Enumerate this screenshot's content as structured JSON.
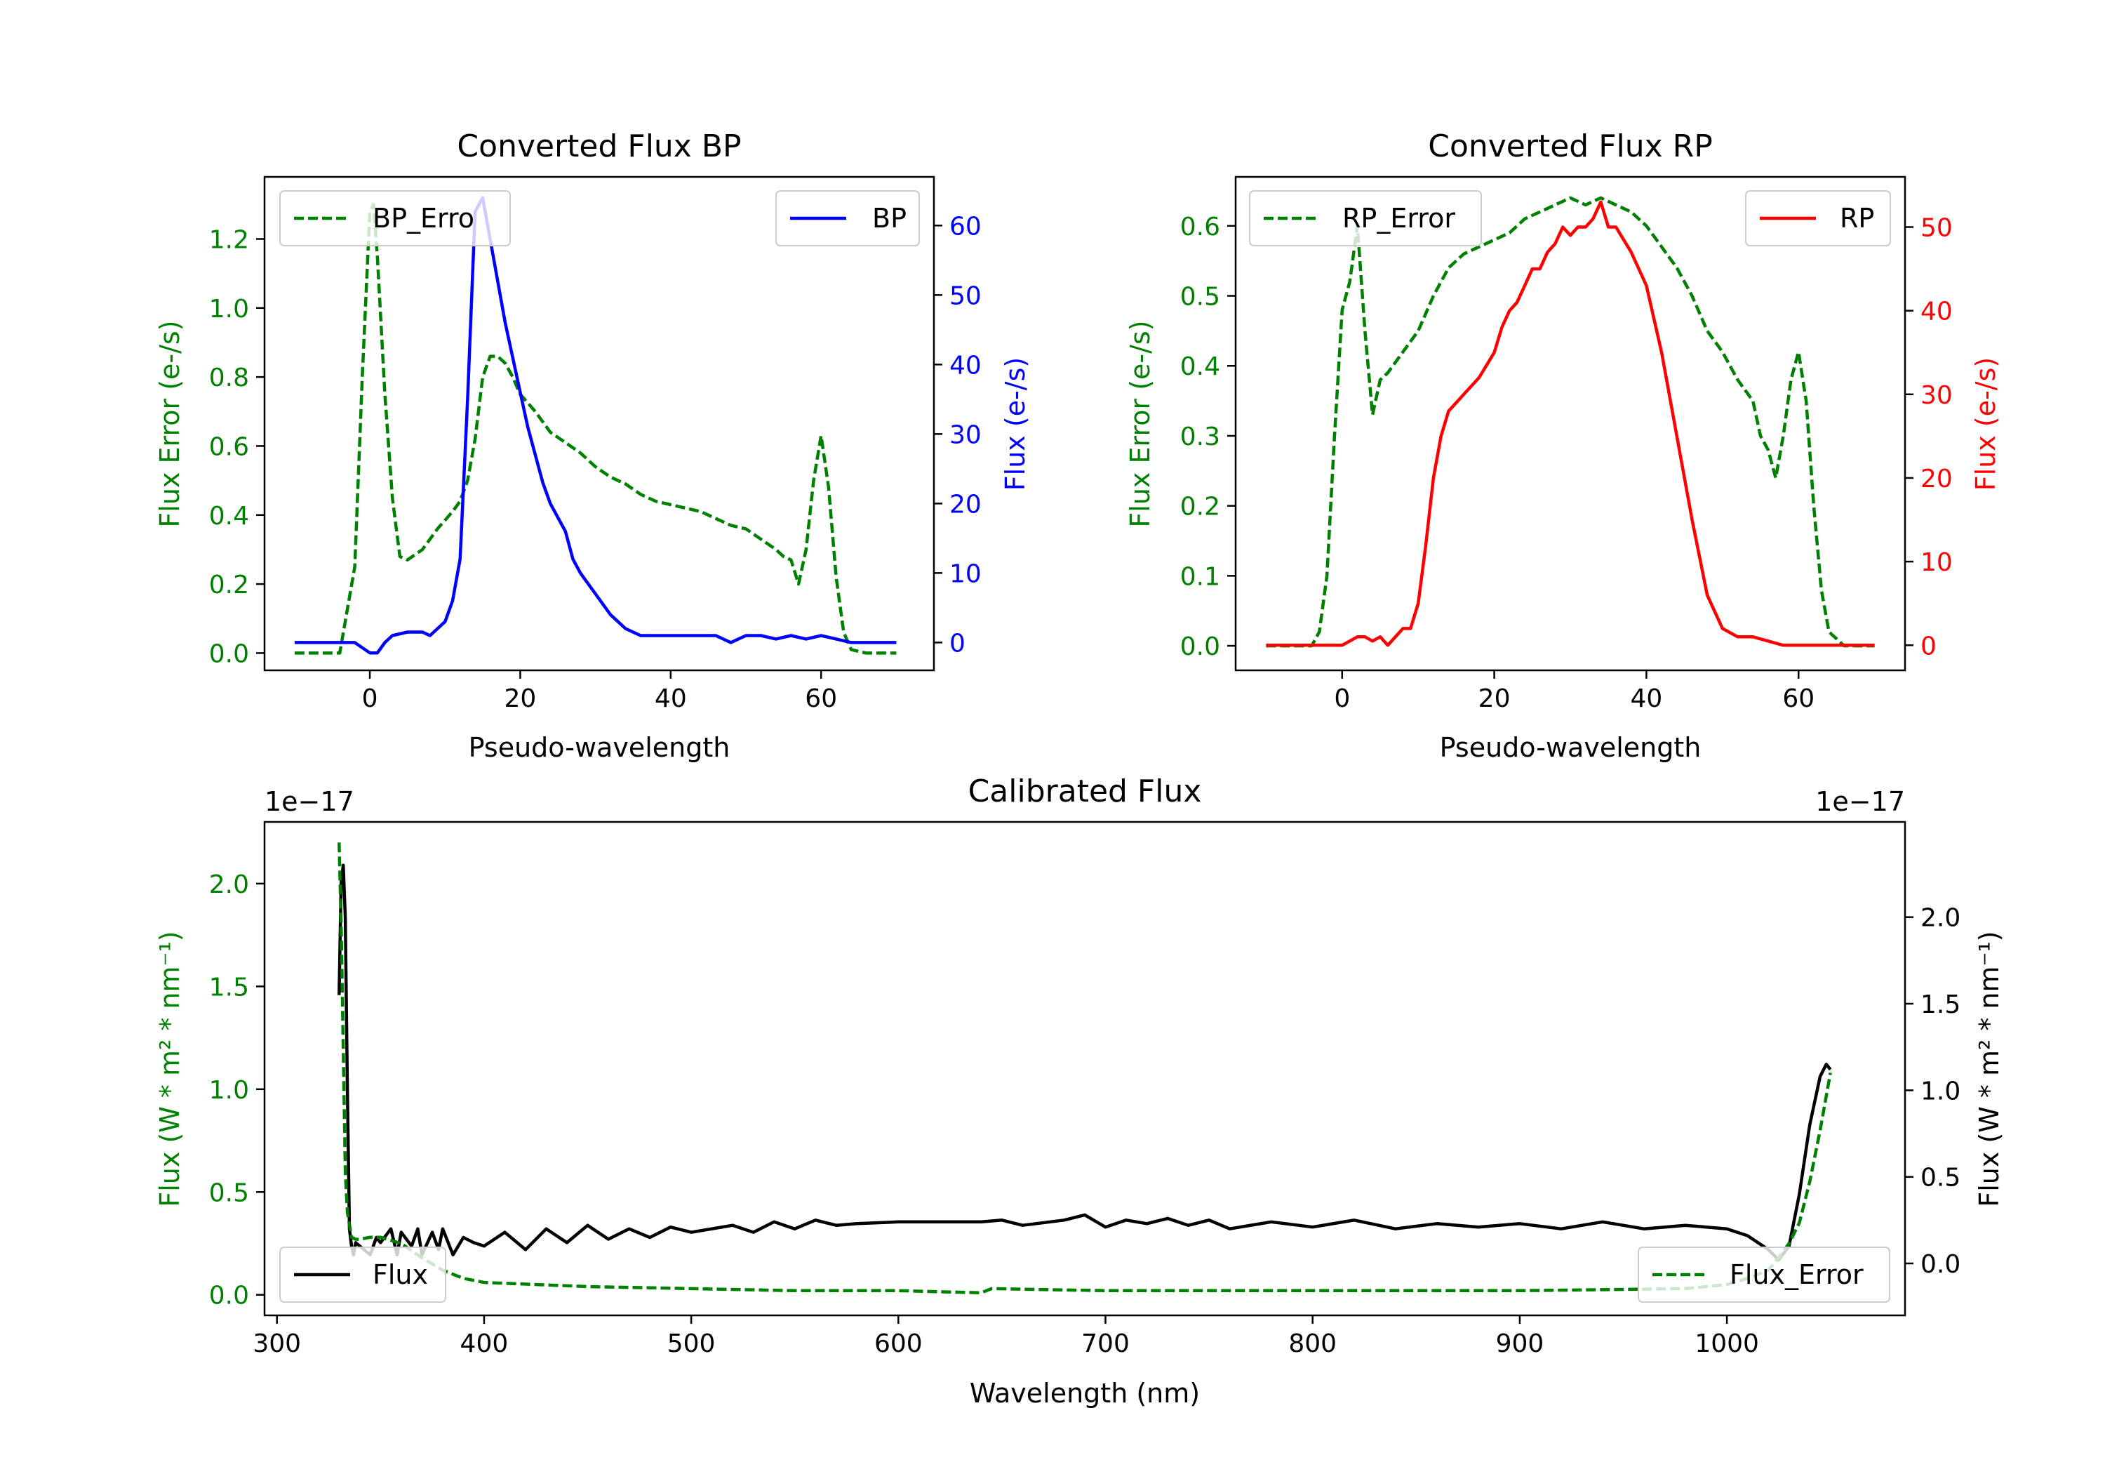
{
  "colors": {
    "bp": "#0000ff",
    "rp": "#ff0000",
    "error": "#008000",
    "flux": "#000000",
    "axis": "#000000",
    "background": "#ffffff"
  },
  "chart_data": [
    {
      "type": "line",
      "title": "Converted Flux BP",
      "xlabel": "Pseudo-wavelength",
      "ylabel_left": "Flux Error (e-/s)",
      "ylabel_right": "Flux (e-/s)",
      "xlim": [
        -14,
        75
      ],
      "xticks": [
        0,
        20,
        40,
        60
      ],
      "ylim_left": [
        -0.05,
        1.38
      ],
      "yticks_left": [
        0.0,
        0.2,
        0.4,
        0.6,
        0.8,
        1.0,
        1.2
      ],
      "ylim_right": [
        -4,
        67
      ],
      "yticks_right": [
        0,
        10,
        20,
        30,
        40,
        50,
        60
      ],
      "legend_left": {
        "label": "BP_Erro",
        "position": "upper-left"
      },
      "legend_right": {
        "label": "BP",
        "position": "upper-right"
      },
      "series": [
        {
          "name": "BP_Error",
          "axis": "left",
          "style": "dashed",
          "color": "#008000",
          "x": [
            -10,
            -4,
            -2,
            -1,
            0,
            0.5,
            1,
            2,
            3,
            4,
            5,
            7,
            9,
            11,
            12,
            13,
            14,
            15,
            16,
            17,
            18,
            19,
            20,
            22,
            24,
            26,
            28,
            30,
            32,
            34,
            36,
            38,
            40,
            42,
            44,
            46,
            48,
            50,
            52,
            54,
            55,
            56,
            57,
            58,
            59,
            60,
            61,
            62,
            63,
            64,
            66,
            70
          ],
          "y": [
            0.0,
            0.0,
            0.25,
            0.8,
            1.28,
            1.3,
            1.15,
            0.75,
            0.45,
            0.28,
            0.27,
            0.3,
            0.36,
            0.41,
            0.44,
            0.5,
            0.62,
            0.8,
            0.86,
            0.86,
            0.84,
            0.8,
            0.75,
            0.7,
            0.64,
            0.61,
            0.58,
            0.54,
            0.51,
            0.49,
            0.46,
            0.44,
            0.43,
            0.42,
            0.41,
            0.39,
            0.37,
            0.36,
            0.33,
            0.3,
            0.28,
            0.27,
            0.2,
            0.3,
            0.5,
            0.63,
            0.48,
            0.22,
            0.06,
            0.01,
            0.0,
            0.0
          ]
        },
        {
          "name": "BP",
          "axis": "right",
          "style": "solid",
          "color": "#0000ff",
          "x": [
            -10,
            -2,
            0,
            1,
            2,
            3,
            5,
            7,
            8,
            9,
            10,
            11,
            12,
            13,
            14,
            15,
            16,
            17,
            18,
            19,
            20,
            21,
            22,
            23,
            24,
            26,
            27,
            28,
            30,
            32,
            33,
            34,
            36,
            38,
            40,
            42,
            44,
            46,
            48,
            50,
            52,
            54,
            56,
            58,
            60,
            62,
            64,
            66,
            70
          ],
          "y": [
            0,
            0,
            -1.5,
            -1.5,
            0,
            1,
            1.5,
            1.5,
            1,
            2,
            3,
            6,
            12,
            35,
            62,
            64,
            58,
            52,
            46,
            41,
            36,
            31,
            27,
            23,
            20,
            16,
            12,
            10,
            7,
            4,
            3,
            2,
            1,
            1,
            1,
            1,
            1,
            1,
            0,
            1,
            1,
            0.5,
            1,
            0.5,
            1,
            0.5,
            0,
            0,
            0
          ]
        }
      ]
    },
    {
      "type": "line",
      "title": "Converted Flux RP",
      "xlabel": "Pseudo-wavelength",
      "ylabel_left": "Flux Error (e-/s)",
      "ylabel_right": "Flux (e-/s)",
      "xlim": [
        -14,
        74
      ],
      "xticks": [
        0,
        20,
        40,
        60
      ],
      "ylim_left": [
        -0.035,
        0.67
      ],
      "yticks_left": [
        0.0,
        0.1,
        0.2,
        0.3,
        0.4,
        0.5,
        0.6
      ],
      "ylim_right": [
        -3,
        56
      ],
      "yticks_right": [
        0,
        10,
        20,
        30,
        40,
        50
      ],
      "legend_left": {
        "label": "RP_Error",
        "position": "upper-left"
      },
      "legend_right": {
        "label": "RP",
        "position": "upper-right"
      },
      "series": [
        {
          "name": "RP_Error",
          "axis": "left",
          "style": "dashed",
          "color": "#008000",
          "x": [
            -10,
            -4,
            -3,
            -2,
            -1,
            0,
            1,
            2,
            3,
            4,
            5,
            6,
            8,
            10,
            12,
            14,
            16,
            18,
            20,
            22,
            24,
            26,
            28,
            30,
            32,
            34,
            36,
            38,
            40,
            42,
            44,
            46,
            48,
            50,
            52,
            54,
            55,
            56,
            57,
            58,
            59,
            60,
            61,
            62,
            63,
            64,
            66,
            70
          ],
          "y": [
            0.0,
            0.0,
            0.02,
            0.1,
            0.3,
            0.48,
            0.52,
            0.6,
            0.45,
            0.33,
            0.38,
            0.39,
            0.42,
            0.45,
            0.5,
            0.54,
            0.56,
            0.57,
            0.58,
            0.59,
            0.61,
            0.62,
            0.63,
            0.64,
            0.63,
            0.64,
            0.63,
            0.62,
            0.6,
            0.57,
            0.54,
            0.5,
            0.45,
            0.42,
            0.38,
            0.35,
            0.3,
            0.28,
            0.24,
            0.3,
            0.38,
            0.42,
            0.35,
            0.2,
            0.08,
            0.02,
            0.0,
            0.0
          ]
        },
        {
          "name": "RP",
          "axis": "right",
          "style": "solid",
          "color": "#ff0000",
          "x": [
            -10,
            -2,
            0,
            2,
            3,
            4,
            5,
            6,
            7,
            8,
            9,
            10,
            11,
            12,
            13,
            14,
            15,
            16,
            18,
            20,
            21,
            22,
            23,
            24,
            25,
            26,
            27,
            28,
            29,
            30,
            31,
            32,
            33,
            34,
            35,
            36,
            38,
            40,
            42,
            44,
            46,
            48,
            50,
            52,
            54,
            56,
            58,
            60,
            62,
            66,
            70
          ],
          "y": [
            0,
            0,
            0,
            1,
            1,
            0.5,
            1,
            0,
            1,
            2,
            2,
            5,
            12,
            20,
            25,
            28,
            29,
            30,
            32,
            35,
            38,
            40,
            41,
            43,
            45,
            45,
            47,
            48,
            50,
            49,
            50,
            50,
            51,
            53,
            50,
            50,
            47,
            43,
            35,
            25,
            15,
            6,
            2,
            1,
            1,
            0.5,
            0,
            0,
            0,
            0,
            0
          ]
        }
      ]
    },
    {
      "type": "line",
      "title": "Calibrated Flux",
      "xlabel": "Wavelength (nm)",
      "ylabel_left": "Flux (W * m² * nm⁻¹)",
      "ylabel_right": "Flux (W * m² * nm⁻¹)",
      "offset_left": "1e−17",
      "offset_right": "1e−17",
      "xlim": [
        294,
        1086
      ],
      "xticks": [
        300,
        400,
        500,
        600,
        700,
        800,
        900,
        1000
      ],
      "ylim_left": [
        -0.1,
        2.3
      ],
      "yticks_left": [
        0.0,
        0.5,
        1.0,
        1.5,
        2.0
      ],
      "ylim_right": [
        -0.3,
        2.55
      ],
      "yticks_right": [
        0.0,
        0.5,
        1.0,
        1.5,
        2.0
      ],
      "legend_left": {
        "label": "Flux",
        "position": "lower-left"
      },
      "legend_right": {
        "label": "Flux_Error",
        "position": "lower-right"
      },
      "series": [
        {
          "name": "Flux",
          "axis": "right",
          "style": "solid",
          "color": "#000000",
          "x": [
            330,
            331,
            332,
            333,
            334,
            335,
            336,
            337,
            338,
            340,
            345,
            348,
            350,
            355,
            358,
            360,
            365,
            368,
            370,
            375,
            378,
            380,
            385,
            390,
            395,
            400,
            410,
            420,
            430,
            440,
            450,
            460,
            470,
            480,
            490,
            500,
            510,
            520,
            530,
            540,
            550,
            560,
            570,
            580,
            600,
            620,
            640,
            650,
            660,
            680,
            690,
            700,
            710,
            720,
            730,
            740,
            750,
            760,
            780,
            800,
            820,
            840,
            860,
            880,
            900,
            920,
            940,
            960,
            980,
            1000,
            1010,
            1020,
            1025,
            1030,
            1035,
            1040,
            1045,
            1048,
            1050
          ],
          "y": [
            1.55,
            2.2,
            2.3,
            2.0,
            1.0,
            0.2,
            0.1,
            0.05,
            0.12,
            0.1,
            0.05,
            0.15,
            0.12,
            0.2,
            0.05,
            0.18,
            0.1,
            0.2,
            0.05,
            0.18,
            0.08,
            0.2,
            0.05,
            0.15,
            0.12,
            0.1,
            0.18,
            0.08,
            0.2,
            0.12,
            0.22,
            0.14,
            0.2,
            0.15,
            0.21,
            0.18,
            0.2,
            0.22,
            0.18,
            0.24,
            0.2,
            0.25,
            0.22,
            0.23,
            0.24,
            0.24,
            0.24,
            0.25,
            0.22,
            0.25,
            0.28,
            0.21,
            0.25,
            0.23,
            0.26,
            0.22,
            0.25,
            0.2,
            0.24,
            0.21,
            0.25,
            0.2,
            0.23,
            0.21,
            0.23,
            0.2,
            0.24,
            0.2,
            0.22,
            0.2,
            0.16,
            0.08,
            0.02,
            0.1,
            0.4,
            0.8,
            1.08,
            1.15,
            1.12
          ]
        },
        {
          "name": "Flux_Error",
          "axis": "left",
          "style": "dashed",
          "color": "#008000",
          "x": [
            330,
            331,
            332,
            333,
            334,
            336,
            338,
            340,
            345,
            350,
            360,
            370,
            380,
            390,
            400,
            450,
            500,
            550,
            600,
            640,
            645,
            700,
            800,
            900,
            980,
            1000,
            1010,
            1020,
            1025,
            1030,
            1035,
            1040,
            1045,
            1050
          ],
          "y": [
            2.2,
            1.8,
            1.2,
            0.6,
            0.4,
            0.28,
            0.27,
            0.27,
            0.28,
            0.28,
            0.25,
            0.18,
            0.12,
            0.08,
            0.06,
            0.04,
            0.03,
            0.02,
            0.02,
            0.01,
            0.03,
            0.02,
            0.02,
            0.02,
            0.03,
            0.05,
            0.08,
            0.12,
            0.18,
            0.25,
            0.35,
            0.55,
            0.8,
            1.08
          ]
        }
      ]
    }
  ]
}
